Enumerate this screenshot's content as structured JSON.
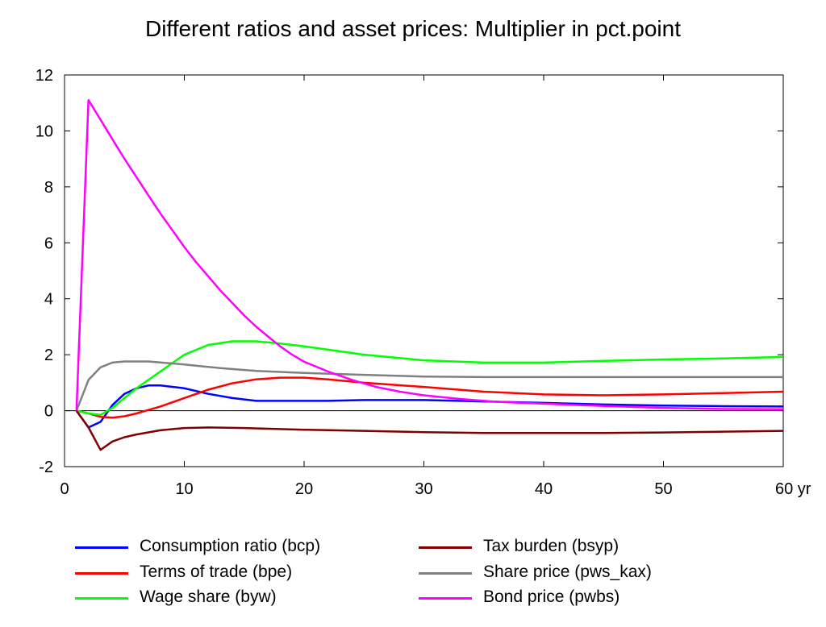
{
  "chart_data": {
    "type": "line",
    "title": "Different ratios and asset prices: Multiplier in pct.point",
    "xlabel": "",
    "ylabel": "",
    "x_unit_label": "yr",
    "xlim": [
      0,
      60
    ],
    "ylim": [
      -2,
      12
    ],
    "x_ticks": [
      0,
      10,
      20,
      30,
      40,
      50,
      60
    ],
    "x_tick_labels": [
      "0",
      "10",
      "20",
      "30",
      "40",
      "50",
      "60 yr"
    ],
    "y_ticks": [
      -2,
      0,
      2,
      4,
      6,
      8,
      10,
      12
    ],
    "y_tick_labels": [
      "-2",
      "0",
      "2",
      "4",
      "6",
      "8",
      "10",
      "12"
    ],
    "zero_line": true,
    "grid": false,
    "legend_position": "bottom",
    "series": [
      {
        "name": "Consumption ratio (bcp)",
        "color": "#0000ff",
        "points": [
          [
            1,
            0
          ],
          [
            2,
            -0.6
          ],
          [
            3,
            -0.4
          ],
          [
            4,
            0.2
          ],
          [
            5,
            0.6
          ],
          [
            6,
            0.8
          ],
          [
            7,
            0.9
          ],
          [
            8,
            0.9
          ],
          [
            10,
            0.8
          ],
          [
            12,
            0.6
          ],
          [
            14,
            0.45
          ],
          [
            16,
            0.35
          ],
          [
            18,
            0.35
          ],
          [
            20,
            0.35
          ],
          [
            22,
            0.35
          ],
          [
            25,
            0.38
          ],
          [
            30,
            0.38
          ],
          [
            35,
            0.33
          ],
          [
            40,
            0.28
          ],
          [
            45,
            0.22
          ],
          [
            50,
            0.18
          ],
          [
            55,
            0.16
          ],
          [
            60,
            0.15
          ]
        ]
      },
      {
        "name": "Terms of trade (bpe)",
        "color": "#ff0000",
        "points": [
          [
            1,
            0
          ],
          [
            2,
            -0.1
          ],
          [
            3,
            -0.22
          ],
          [
            4,
            -0.25
          ],
          [
            5,
            -0.2
          ],
          [
            6,
            -0.1
          ],
          [
            8,
            0.15
          ],
          [
            10,
            0.45
          ],
          [
            12,
            0.75
          ],
          [
            14,
            0.98
          ],
          [
            16,
            1.12
          ],
          [
            18,
            1.18
          ],
          [
            20,
            1.18
          ],
          [
            22,
            1.12
          ],
          [
            25,
            1.0
          ],
          [
            30,
            0.85
          ],
          [
            35,
            0.68
          ],
          [
            40,
            0.58
          ],
          [
            45,
            0.55
          ],
          [
            50,
            0.58
          ],
          [
            55,
            0.63
          ],
          [
            60,
            0.68
          ]
        ]
      },
      {
        "name": "Wage share (byw)",
        "color": "#00ff00",
        "points": [
          [
            1,
            0
          ],
          [
            2,
            -0.1
          ],
          [
            3,
            -0.15
          ],
          [
            4,
            0.1
          ],
          [
            5,
            0.45
          ],
          [
            6,
            0.8
          ],
          [
            8,
            1.4
          ],
          [
            10,
            2.0
          ],
          [
            12,
            2.35
          ],
          [
            14,
            2.48
          ],
          [
            16,
            2.48
          ],
          [
            18,
            2.4
          ],
          [
            20,
            2.3
          ],
          [
            22,
            2.18
          ],
          [
            25,
            2.0
          ],
          [
            30,
            1.8
          ],
          [
            35,
            1.72
          ],
          [
            40,
            1.72
          ],
          [
            45,
            1.78
          ],
          [
            50,
            1.83
          ],
          [
            55,
            1.87
          ],
          [
            60,
            1.92
          ]
        ]
      },
      {
        "name": "Tax burden (bsyp)",
        "color": "#800000",
        "points": [
          [
            1,
            0
          ],
          [
            2,
            -0.6
          ],
          [
            3,
            -1.4
          ],
          [
            4,
            -1.1
          ],
          [
            5,
            -0.95
          ],
          [
            6,
            -0.85
          ],
          [
            8,
            -0.7
          ],
          [
            10,
            -0.62
          ],
          [
            12,
            -0.6
          ],
          [
            15,
            -0.62
          ],
          [
            20,
            -0.68
          ],
          [
            25,
            -0.72
          ],
          [
            30,
            -0.77
          ],
          [
            35,
            -0.8
          ],
          [
            40,
            -0.8
          ],
          [
            45,
            -0.8
          ],
          [
            50,
            -0.78
          ],
          [
            55,
            -0.75
          ],
          [
            60,
            -0.72
          ]
        ]
      },
      {
        "name": "Share price (pws_kax)",
        "color": "#808080",
        "points": [
          [
            1,
            0
          ],
          [
            2,
            1.1
          ],
          [
            3,
            1.55
          ],
          [
            4,
            1.72
          ],
          [
            5,
            1.76
          ],
          [
            7,
            1.76
          ],
          [
            10,
            1.65
          ],
          [
            13,
            1.52
          ],
          [
            16,
            1.42
          ],
          [
            20,
            1.35
          ],
          [
            25,
            1.28
          ],
          [
            30,
            1.22
          ],
          [
            35,
            1.2
          ],
          [
            40,
            1.2
          ],
          [
            45,
            1.2
          ],
          [
            50,
            1.2
          ],
          [
            55,
            1.2
          ],
          [
            60,
            1.2
          ]
        ]
      },
      {
        "name": "Bond price (pwbs)",
        "color": "#ff00ff",
        "points": [
          [
            1,
            0
          ],
          [
            2,
            11.1
          ],
          [
            3,
            10.4
          ],
          [
            4,
            9.7
          ],
          [
            5,
            9.0
          ],
          [
            6,
            8.35
          ],
          [
            7,
            7.7
          ],
          [
            8,
            7.05
          ],
          [
            9,
            6.45
          ],
          [
            10,
            5.85
          ],
          [
            11,
            5.3
          ],
          [
            12,
            4.8
          ],
          [
            13,
            4.3
          ],
          [
            14,
            3.85
          ],
          [
            15,
            3.4
          ],
          [
            16,
            3.0
          ],
          [
            17,
            2.65
          ],
          [
            18,
            2.3
          ],
          [
            19,
            2.0
          ],
          [
            20,
            1.75
          ],
          [
            22,
            1.4
          ],
          [
            24,
            1.1
          ],
          [
            26,
            0.85
          ],
          [
            28,
            0.68
          ],
          [
            30,
            0.55
          ],
          [
            33,
            0.42
          ],
          [
            36,
            0.32
          ],
          [
            40,
            0.25
          ],
          [
            45,
            0.17
          ],
          [
            50,
            0.1
          ],
          [
            55,
            0.06
          ],
          [
            60,
            0.05
          ]
        ]
      }
    ]
  }
}
